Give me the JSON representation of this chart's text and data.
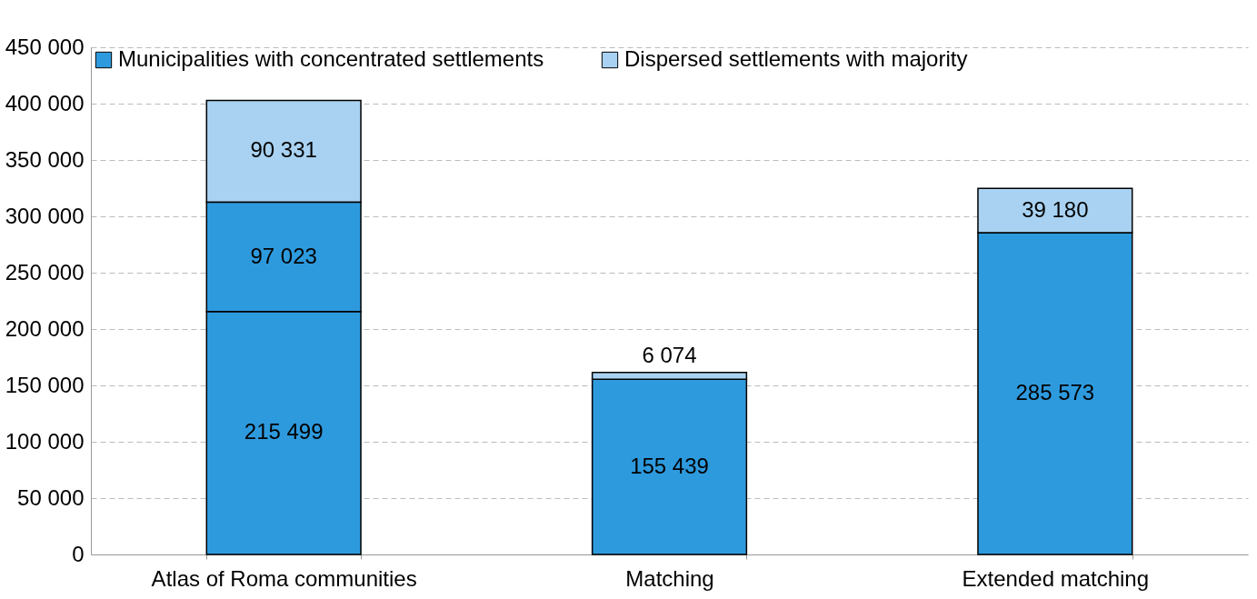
{
  "chart_data": {
    "type": "bar",
    "stacked": true,
    "categories": [
      "Atlas of Roma communities",
      "Matching",
      "Extended matching"
    ],
    "series": [
      {
        "name": "Municipalities with concentrated settlements",
        "color": "#2e9ade",
        "values": [
          215499,
          155439,
          285573
        ]
      },
      {
        "color": "#2e9ade",
        "values": [
          97023,
          null,
          null
        ]
      },
      {
        "name": "Dispersed settlements with majority",
        "color": "#a9d2f2",
        "values": [
          90331,
          6074,
          39180
        ]
      }
    ],
    "ylim": [
      0,
      450000
    ],
    "yticks": [
      0,
      {
        "value": 50000,
        "label": "50 000"
      },
      {
        "value": 100000,
        "label": "100 000"
      },
      {
        "value": 150000,
        "label": "150 000"
      },
      {
        "value": 200000,
        "label": "200 000"
      },
      {
        "value": 250000,
        "label": "250 000"
      },
      {
        "value": 300000,
        "label": "300 000"
      },
      {
        "value": 350000,
        "label": "350 000"
      },
      {
        "value": 400000,
        "label": "400 000"
      },
      {
        "value": 450000,
        "label": "450 000"
      }
    ],
    "grid": "y",
    "legend": "top left",
    "data_labels": true
  }
}
